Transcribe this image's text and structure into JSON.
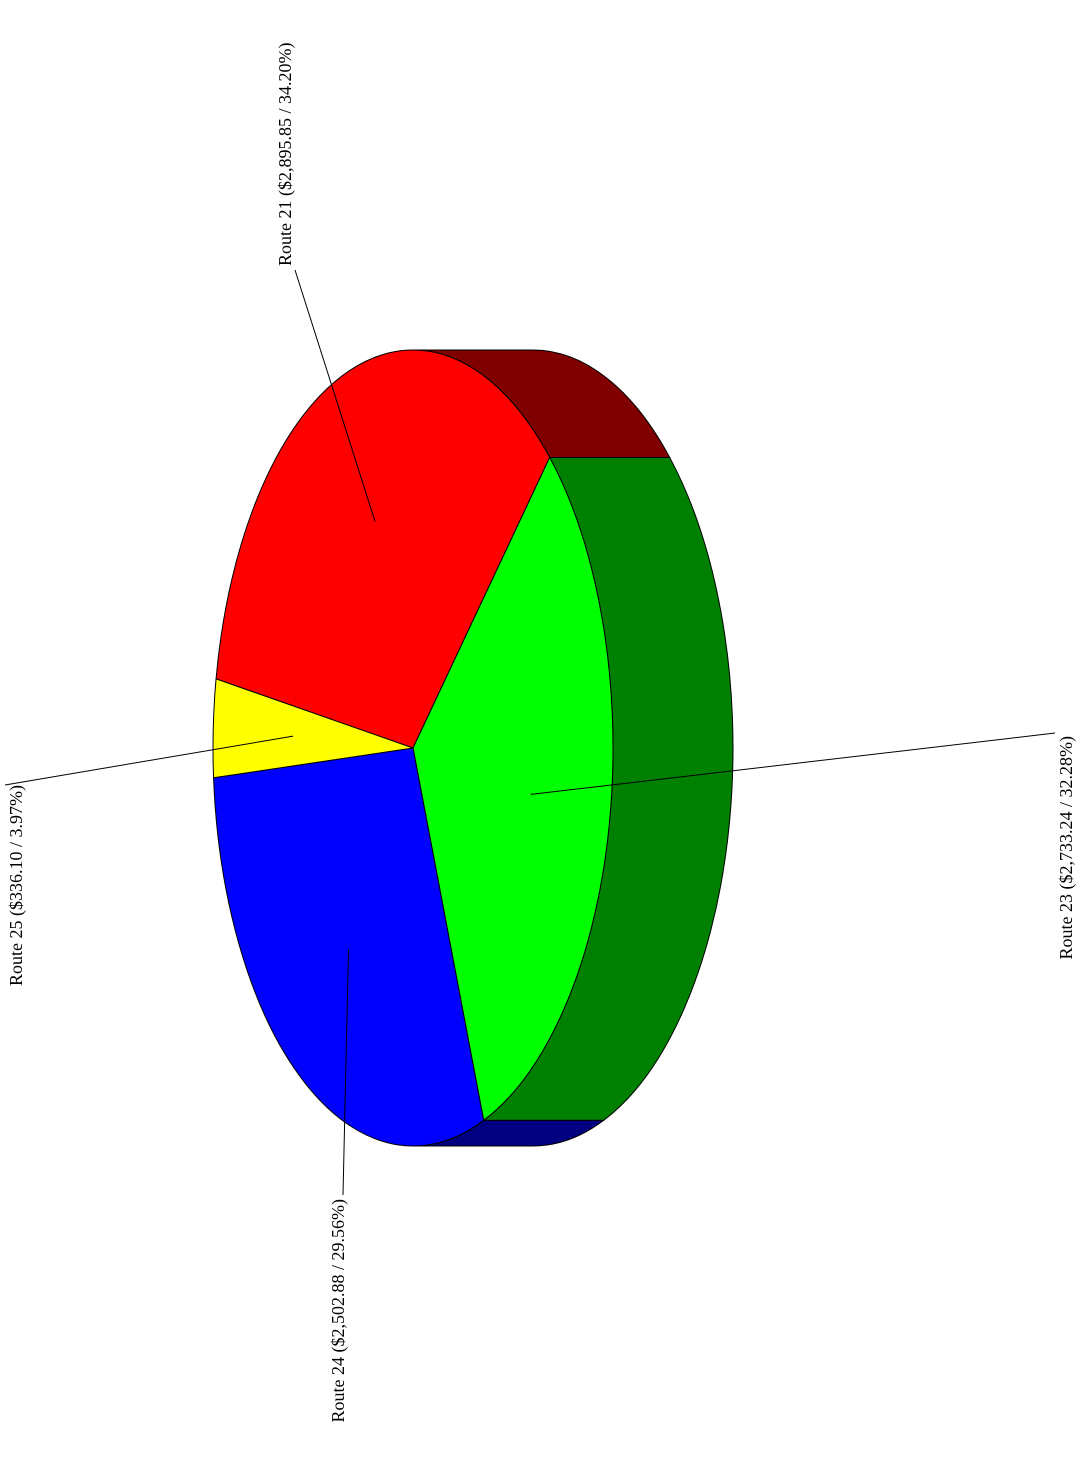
{
  "chart_data": {
    "type": "pie3d",
    "value_labels": [
      "Route 21 ($2,895.85 / 34.20%)",
      "Route 23 ($2,733.24 / 32.28%)",
      "Route 24 ($2,502.88 / 29.56%)",
      "Route 25 ($336.10 / 3.97%)"
    ],
    "values": [
      2895.85,
      2733.24,
      2502.88,
      336.1
    ],
    "colors": [
      "#ff0000",
      "#00ff00",
      "#0000ff",
      "#ffff00"
    ],
    "side_colors": [
      "#800000",
      "#008000",
      "#000080",
      "#808000"
    ]
  }
}
